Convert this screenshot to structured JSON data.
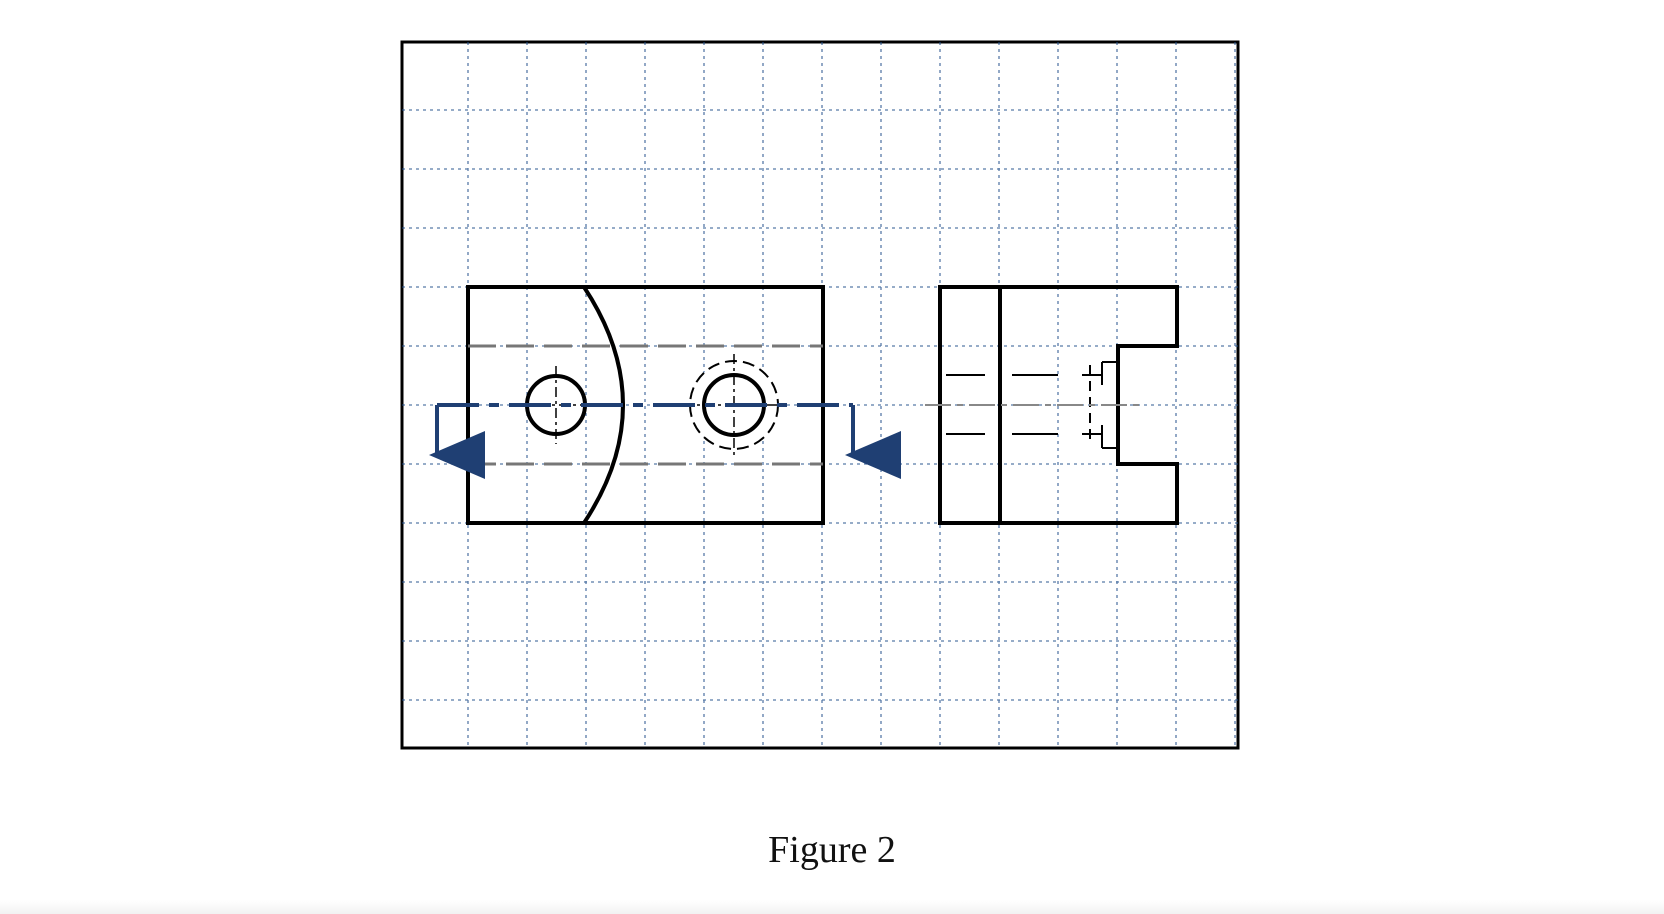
{
  "figure": {
    "caption": "Figure 2",
    "grid_color": "#1f4e8c",
    "line_color": "#000000",
    "hidden_line_color": "#777777",
    "cutting_plane_color": "#1f3f73",
    "views": [
      "front-view",
      "side-view"
    ]
  }
}
